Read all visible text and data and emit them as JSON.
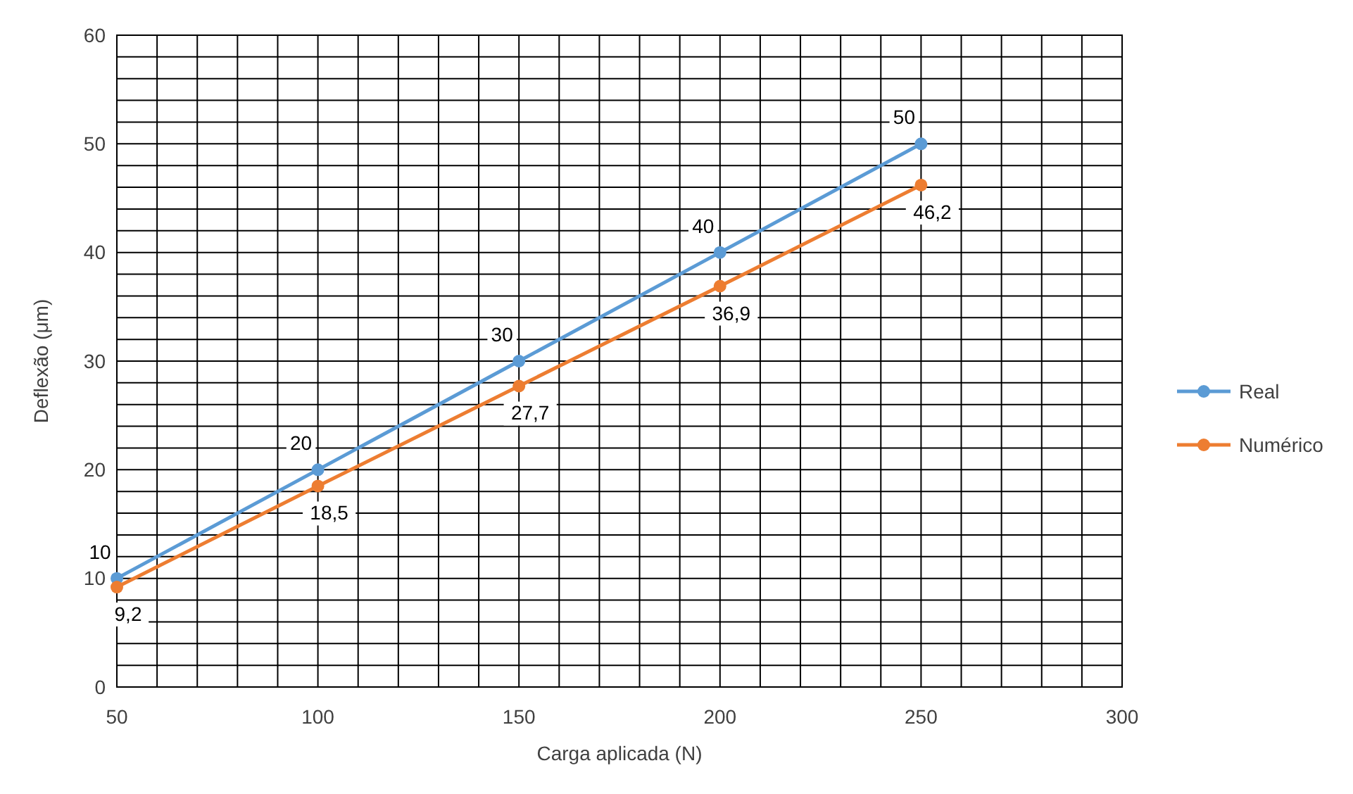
{
  "chart_data": {
    "type": "line",
    "xlabel": "Carga aplicada (N)",
    "ylabel": "Deflexão (μm)",
    "x": [
      50,
      100,
      150,
      200,
      250
    ],
    "series": [
      {
        "name": "Real",
        "color": "#5b9bd5",
        "values": [
          10,
          20,
          30,
          40,
          50
        ],
        "value_labels": [
          "10",
          "20",
          "30",
          "40",
          "50"
        ]
      },
      {
        "name": "Numérico",
        "color": "#ed7d31",
        "values": [
          9.2,
          18.5,
          27.7,
          36.9,
          46.2
        ],
        "value_labels": [
          "9,2",
          "18,5",
          "27,7",
          "36,9",
          "46,2"
        ]
      }
    ],
    "xlim": [
      50,
      300
    ],
    "xticks": [
      50,
      {
        "value": 60,
        "label": null
      },
      {
        "value": 70,
        "label": null
      },
      {
        "value": 80,
        "label": null
      },
      {
        "value": 90,
        "label": null
      },
      100,
      {
        "value": 110,
        "label": null
      },
      {
        "value": 120,
        "label": null
      },
      {
        "value": 130,
        "label": null
      },
      {
        "value": 140,
        "label": null
      },
      150,
      {
        "value": 160,
        "label": null
      },
      {
        "value": 170,
        "label": null
      },
      {
        "value": 180,
        "label": null
      },
      {
        "value": 190,
        "label": null
      },
      200,
      {
        "value": 210,
        "label": null
      },
      {
        "value": 220,
        "label": null
      },
      {
        "value": 230,
        "label": null
      },
      {
        "value": 240,
        "label": null
      },
      250,
      {
        "value": 260,
        "label": null
      },
      {
        "value": 270,
        "label": null
      },
      {
        "value": 280,
        "label": null
      },
      {
        "value": 290,
        "label": null
      },
      300
    ],
    "ylim": [
      0,
      60
    ],
    "yticks": [
      0,
      {
        "value": 2,
        "label": null
      },
      {
        "value": 4,
        "label": null
      },
      {
        "value": 6,
        "label": null
      },
      {
        "value": 8,
        "label": null
      },
      10,
      {
        "value": 12,
        "label": null
      },
      {
        "value": 14,
        "label": null
      },
      {
        "value": 16,
        "label": null
      },
      {
        "value": 18,
        "label": null
      },
      20,
      {
        "value": 22,
        "label": null
      },
      {
        "value": 24,
        "label": null
      },
      {
        "value": 26,
        "label": null
      },
      {
        "value": 28,
        "label": null
      },
      30,
      {
        "value": 32,
        "label": null
      },
      {
        "value": 34,
        "label": null
      },
      {
        "value": 36,
        "label": null
      },
      {
        "value": 38,
        "label": null
      },
      40,
      {
        "value": 42,
        "label": null
      },
      {
        "value": 44,
        "label": null
      },
      {
        "value": 46,
        "label": null
      },
      {
        "value": 48,
        "label": null
      },
      50,
      {
        "value": 52,
        "label": null
      },
      {
        "value": 54,
        "label": null
      },
      {
        "value": 56,
        "label": null
      },
      {
        "value": 58,
        "label": null
      },
      60
    ],
    "grid": true,
    "legend": "right",
    "marker": "circle",
    "line_style": "solid"
  }
}
